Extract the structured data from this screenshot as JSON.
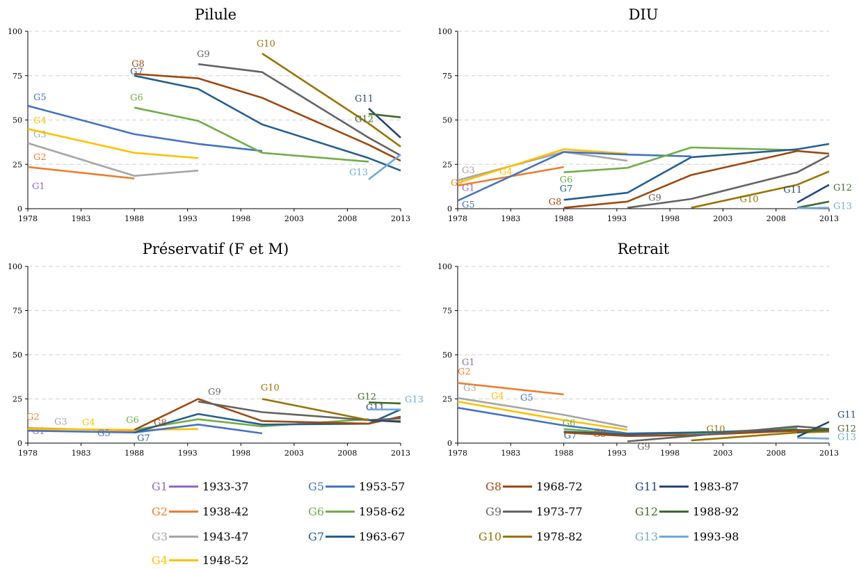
{
  "groups": [
    {
      "code": "G1",
      "range": "1933-37",
      "color": "#8e6bc1"
    },
    {
      "code": "G2",
      "range": "1938-42",
      "color": "#ed7d31"
    },
    {
      "code": "G3",
      "range": "1943-47",
      "color": "#a5a5a5"
    },
    {
      "code": "G4",
      "range": "1948-52",
      "color": "#ffc000"
    },
    {
      "code": "G5",
      "range": "1953-57",
      "color": "#4472c4"
    },
    {
      "code": "G6",
      "range": "1958-62",
      "color": "#70ad47"
    },
    {
      "code": "G7",
      "range": "1963-67",
      "color": "#255e91"
    },
    {
      "code": "G8",
      "range": "1968-72",
      "color": "#9e480e"
    },
    {
      "code": "G9",
      "range": "1973-77",
      "color": "#636363"
    },
    {
      "code": "G10",
      "range": "1978-82",
      "color": "#997300"
    },
    {
      "code": "G11",
      "range": "1983-87",
      "color": "#264478"
    },
    {
      "code": "G12",
      "range": "1988-92",
      "color": "#43682b"
    },
    {
      "code": "G13",
      "range": "1993-98",
      "color": "#6fa8dc"
    }
  ],
  "chart_data": [
    {
      "type": "line",
      "title": "Pilule",
      "xlim": [
        1978,
        2013
      ],
      "ylim": [
        0,
        100
      ],
      "xticks": [
        1978,
        1983,
        1988,
        1993,
        1998,
        2003,
        2008,
        2013
      ],
      "yticks": [
        0,
        25,
        50,
        75,
        100
      ],
      "series": [
        {
          "name": "G1",
          "points": []
        },
        {
          "name": "G2",
          "points": [
            [
              1978,
              23.5
            ],
            [
              1988,
              17
            ]
          ]
        },
        {
          "name": "G3",
          "points": [
            [
              1978,
              37
            ],
            [
              1988,
              18.5
            ],
            [
              1994,
              21.5
            ]
          ]
        },
        {
          "name": "G4",
          "points": [
            [
              1978,
              45
            ],
            [
              1988,
              31.5
            ],
            [
              1994,
              28.5
            ]
          ]
        },
        {
          "name": "G5",
          "points": [
            [
              1978,
              58
            ],
            [
              1988,
              42
            ],
            [
              1994,
              36.5
            ],
            [
              2000,
              32.5
            ]
          ]
        },
        {
          "name": "G6",
          "points": [
            [
              1988,
              57
            ],
            [
              1994,
              49.5
            ],
            [
              2000,
              31.5
            ],
            [
              2010,
              26.5
            ]
          ]
        },
        {
          "name": "G7",
          "points": [
            [
              1988,
              75
            ],
            [
              1994,
              67.5
            ],
            [
              2000,
              47.5
            ],
            [
              2010,
              28.5
            ],
            [
              2013,
              21.5
            ]
          ]
        },
        {
          "name": "G8",
          "points": [
            [
              1988,
              76
            ],
            [
              1994,
              73.5
            ],
            [
              2000,
              62.5
            ],
            [
              2010,
              36
            ],
            [
              2013,
              27
            ]
          ]
        },
        {
          "name": "G9",
          "points": [
            [
              1994,
              81.5
            ],
            [
              2000,
              77
            ],
            [
              2010,
              40
            ],
            [
              2013,
              30
            ]
          ]
        },
        {
          "name": "G10",
          "points": [
            [
              2000,
              87.5
            ],
            [
              2010,
              48
            ],
            [
              2013,
              35
            ]
          ]
        },
        {
          "name": "G11",
          "points": [
            [
              2010,
              56.5
            ],
            [
              2013,
              40
            ]
          ]
        },
        {
          "name": "G12",
          "points": [
            [
              2010,
              53.5
            ],
            [
              2013,
              51.5
            ]
          ]
        },
        {
          "name": "G13",
          "points": [
            [
              2010,
              16.5
            ],
            [
              2013,
              30.5
            ]
          ]
        }
      ]
    },
    {
      "type": "line",
      "title": "DIU",
      "xlim": [
        1978,
        2013
      ],
      "ylim": [
        0,
        100
      ],
      "xticks": [
        1978,
        1983,
        1988,
        1993,
        1998,
        2003,
        2008,
        2013
      ],
      "yticks": [
        0,
        25,
        50,
        75,
        100
      ],
      "series": [
        {
          "name": "G1",
          "points": []
        },
        {
          "name": "G2",
          "points": [
            [
              1978,
              13
            ],
            [
              1988,
              23.5
            ]
          ]
        },
        {
          "name": "G3",
          "points": [
            [
              1978,
              16
            ],
            [
              1988,
              32
            ],
            [
              1994,
              27
            ]
          ]
        },
        {
          "name": "G4",
          "points": [
            [
              1978,
              14.5
            ],
            [
              1988,
              33.5
            ],
            [
              1994,
              31
            ]
          ]
        },
        {
          "name": "G5",
          "points": [
            [
              1978,
              4.5
            ],
            [
              1988,
              32
            ],
            [
              1994,
              30.5
            ],
            [
              2000,
              29.5
            ]
          ]
        },
        {
          "name": "G6",
          "points": [
            [
              1988,
              20.5
            ],
            [
              1994,
              23
            ],
            [
              2000,
              34.5
            ],
            [
              2010,
              33
            ]
          ]
        },
        {
          "name": "G7",
          "points": [
            [
              1988,
              5
            ],
            [
              1994,
              9
            ],
            [
              2000,
              29
            ],
            [
              2010,
              33.5
            ],
            [
              2013,
              36.5
            ]
          ]
        },
        {
          "name": "G8",
          "points": [
            [
              1988,
              0.5
            ],
            [
              1994,
              4
            ],
            [
              2000,
              19
            ],
            [
              2010,
              32.5
            ],
            [
              2013,
              31
            ]
          ]
        },
        {
          "name": "G9",
          "points": [
            [
              1994,
              0.5
            ],
            [
              2000,
              5.5
            ],
            [
              2010,
              20.5
            ],
            [
              2013,
              30
            ]
          ]
        },
        {
          "name": "G10",
          "points": [
            [
              2000,
              0.5
            ],
            [
              2010,
              13.5
            ],
            [
              2013,
              21
            ]
          ]
        },
        {
          "name": "G11",
          "points": [
            [
              2010,
              3.5
            ],
            [
              2013,
              13.5
            ]
          ]
        },
        {
          "name": "G12",
          "points": [
            [
              2010,
              0.5
            ],
            [
              2013,
              4
            ]
          ]
        },
        {
          "name": "G13",
          "points": [
            [
              2010,
              0.3
            ],
            [
              2013,
              0.5
            ]
          ]
        }
      ]
    },
    {
      "type": "line",
      "title": "Préservatif (F et M)",
      "xlim": [
        1978,
        2013
      ],
      "ylim": [
        0,
        100
      ],
      "xticks": [
        1978,
        1983,
        1988,
        1993,
        1998,
        2003,
        2008,
        2013
      ],
      "yticks": [
        0,
        25,
        50,
        75,
        100
      ],
      "series": [
        {
          "name": "G1",
          "points": []
        },
        {
          "name": "G2",
          "points": [
            [
              1978,
              8.5
            ],
            [
              1988,
              7
            ]
          ]
        },
        {
          "name": "G3",
          "points": [
            [
              1978,
              8
            ],
            [
              1988,
              7.5
            ]
          ]
        },
        {
          "name": "G4",
          "points": [
            [
              1978,
              8
            ],
            [
              1988,
              7.5
            ],
            [
              1994,
              8
            ]
          ]
        },
        {
          "name": "G5",
          "points": [
            [
              1978,
              7
            ],
            [
              1988,
              6
            ],
            [
              1994,
              10.5
            ],
            [
              2000,
              5.5
            ]
          ]
        },
        {
          "name": "G6",
          "points": [
            [
              1988,
              7.5
            ],
            [
              1994,
              13.5
            ],
            [
              2000,
              9.5
            ],
            [
              2010,
              13.5
            ]
          ]
        },
        {
          "name": "G7",
          "points": [
            [
              1988,
              6
            ],
            [
              1994,
              16.5
            ],
            [
              2000,
              10.5
            ],
            [
              2010,
              11
            ],
            [
              2013,
              19
            ]
          ]
        },
        {
          "name": "G8",
          "points": [
            [
              1988,
              7.5
            ],
            [
              1994,
              25
            ],
            [
              2000,
              12.5
            ],
            [
              2010,
              11
            ],
            [
              2013,
              15
            ]
          ]
        },
        {
          "name": "G9",
          "points": [
            [
              1994,
              23.5
            ],
            [
              2000,
              17.5
            ],
            [
              2010,
              13
            ],
            [
              2013,
              14
            ]
          ]
        },
        {
          "name": "G10",
          "points": [
            [
              2000,
              25
            ],
            [
              2010,
              13
            ],
            [
              2013,
              12.5
            ]
          ]
        },
        {
          "name": "G11",
          "points": [
            [
              2010,
              13
            ],
            [
              2013,
              12
            ]
          ]
        },
        {
          "name": "G12",
          "points": [
            [
              2010,
              23
            ],
            [
              2013,
              22.5
            ]
          ]
        },
        {
          "name": "G13",
          "points": [
            [
              2010,
              19
            ],
            [
              2013,
              19
            ]
          ]
        }
      ]
    },
    {
      "type": "line",
      "title": "Retrait",
      "xlim": [
        1978,
        2013
      ],
      "ylim": [
        0,
        100
      ],
      "xticks": [
        1978,
        1983,
        1988,
        1993,
        1998,
        2003,
        2008,
        2013
      ],
      "yticks": [
        0,
        25,
        50,
        75,
        100
      ],
      "series": [
        {
          "name": "G1",
          "points": []
        },
        {
          "name": "G2",
          "points": [
            [
              1978,
              34
            ],
            [
              1988,
              27.5
            ]
          ]
        },
        {
          "name": "G3",
          "points": [
            [
              1978,
              25.5
            ],
            [
              1988,
              16
            ],
            [
              1994,
              9
            ]
          ]
        },
        {
          "name": "G4",
          "points": [
            [
              1978,
              23.5
            ],
            [
              1988,
              13
            ],
            [
              1994,
              7.5
            ]
          ]
        },
        {
          "name": "G5",
          "points": [
            [
              1978,
              20
            ],
            [
              1988,
              10
            ],
            [
              1994,
              5.5
            ],
            [
              2000,
              6
            ]
          ]
        },
        {
          "name": "G6",
          "points": [
            [
              1988,
              8
            ],
            [
              1994,
              5
            ],
            [
              2000,
              5.5
            ],
            [
              2010,
              8.5
            ]
          ]
        },
        {
          "name": "G7",
          "points": [
            [
              1988,
              6.5
            ],
            [
              1994,
              5
            ],
            [
              2000,
              6
            ],
            [
              2010,
              7.5
            ],
            [
              2013,
              7
            ]
          ]
        },
        {
          "name": "G8",
          "points": [
            [
              1988,
              6
            ],
            [
              1994,
              4
            ],
            [
              2000,
              4.5
            ],
            [
              2010,
              7
            ],
            [
              2013,
              8
            ]
          ]
        },
        {
          "name": "G9",
          "points": [
            [
              1994,
              1
            ],
            [
              2000,
              4
            ],
            [
              2010,
              9.5
            ],
            [
              2013,
              8
            ]
          ]
        },
        {
          "name": "G10",
          "points": [
            [
              2000,
              1.5
            ],
            [
              2010,
              6
            ],
            [
              2013,
              6.5
            ]
          ]
        },
        {
          "name": "G11",
          "points": [
            [
              2010,
              3.5
            ],
            [
              2013,
              12
            ]
          ]
        },
        {
          "name": "G12",
          "points": [
            [
              2010,
              6
            ],
            [
              2013,
              8
            ]
          ]
        },
        {
          "name": "G13",
          "points": [
            [
              2010,
              3
            ],
            [
              2013,
              2.5
            ]
          ]
        }
      ]
    }
  ]
}
